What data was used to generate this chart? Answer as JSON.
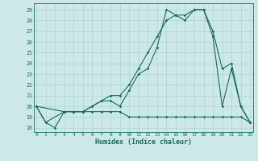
{
  "xlabel": "Humidex (Indice chaleur)",
  "bg_color": "#cce8e8",
  "line_color": "#1a6b5a",
  "grid_color": "#b0d4d0",
  "xlim": [
    -0.3,
    23.3
  ],
  "ylim": [
    17.6,
    29.6
  ],
  "yticks": [
    18,
    19,
    20,
    21,
    22,
    23,
    24,
    25,
    26,
    27,
    28,
    29
  ],
  "xticks": [
    0,
    1,
    2,
    3,
    4,
    5,
    6,
    7,
    8,
    9,
    10,
    11,
    12,
    13,
    14,
    15,
    16,
    17,
    18,
    19,
    20,
    21,
    22,
    23
  ],
  "line1_x": [
    0,
    1,
    2,
    3,
    4,
    5,
    6,
    7,
    8,
    9,
    10,
    11,
    12,
    13,
    14,
    15,
    16,
    17,
    18,
    19,
    20,
    21,
    22,
    23
  ],
  "line1_y": [
    20,
    18.5,
    18,
    19.5,
    19.5,
    19.5,
    19.5,
    19.5,
    19.5,
    19.5,
    19,
    19,
    19,
    19,
    19,
    19,
    19,
    19,
    19,
    19,
    19,
    19,
    19,
    18.5
  ],
  "line2_x": [
    0,
    1,
    3,
    4,
    5,
    6,
    7,
    8,
    9,
    10,
    11,
    12,
    13,
    14,
    15,
    16,
    17,
    18,
    19,
    20,
    21,
    22,
    23
  ],
  "line2_y": [
    20,
    18.5,
    19.5,
    19.5,
    19.5,
    20,
    20.5,
    20.5,
    20,
    21.5,
    23,
    23.5,
    25.5,
    29,
    28.5,
    28,
    29,
    29,
    26.5,
    20,
    23.5,
    20,
    18.5
  ],
  "line3_x": [
    0,
    3,
    4,
    5,
    6,
    7,
    8,
    9,
    10,
    11,
    12,
    13,
    14,
    15,
    16,
    17,
    18,
    19,
    20,
    21,
    22,
    23
  ],
  "line3_y": [
    20,
    19.5,
    19.5,
    19.5,
    20,
    20.5,
    21,
    21,
    22,
    23.5,
    25,
    26.5,
    28,
    28.5,
    28.5,
    29,
    29,
    27,
    23.5,
    24,
    20,
    18.5
  ]
}
